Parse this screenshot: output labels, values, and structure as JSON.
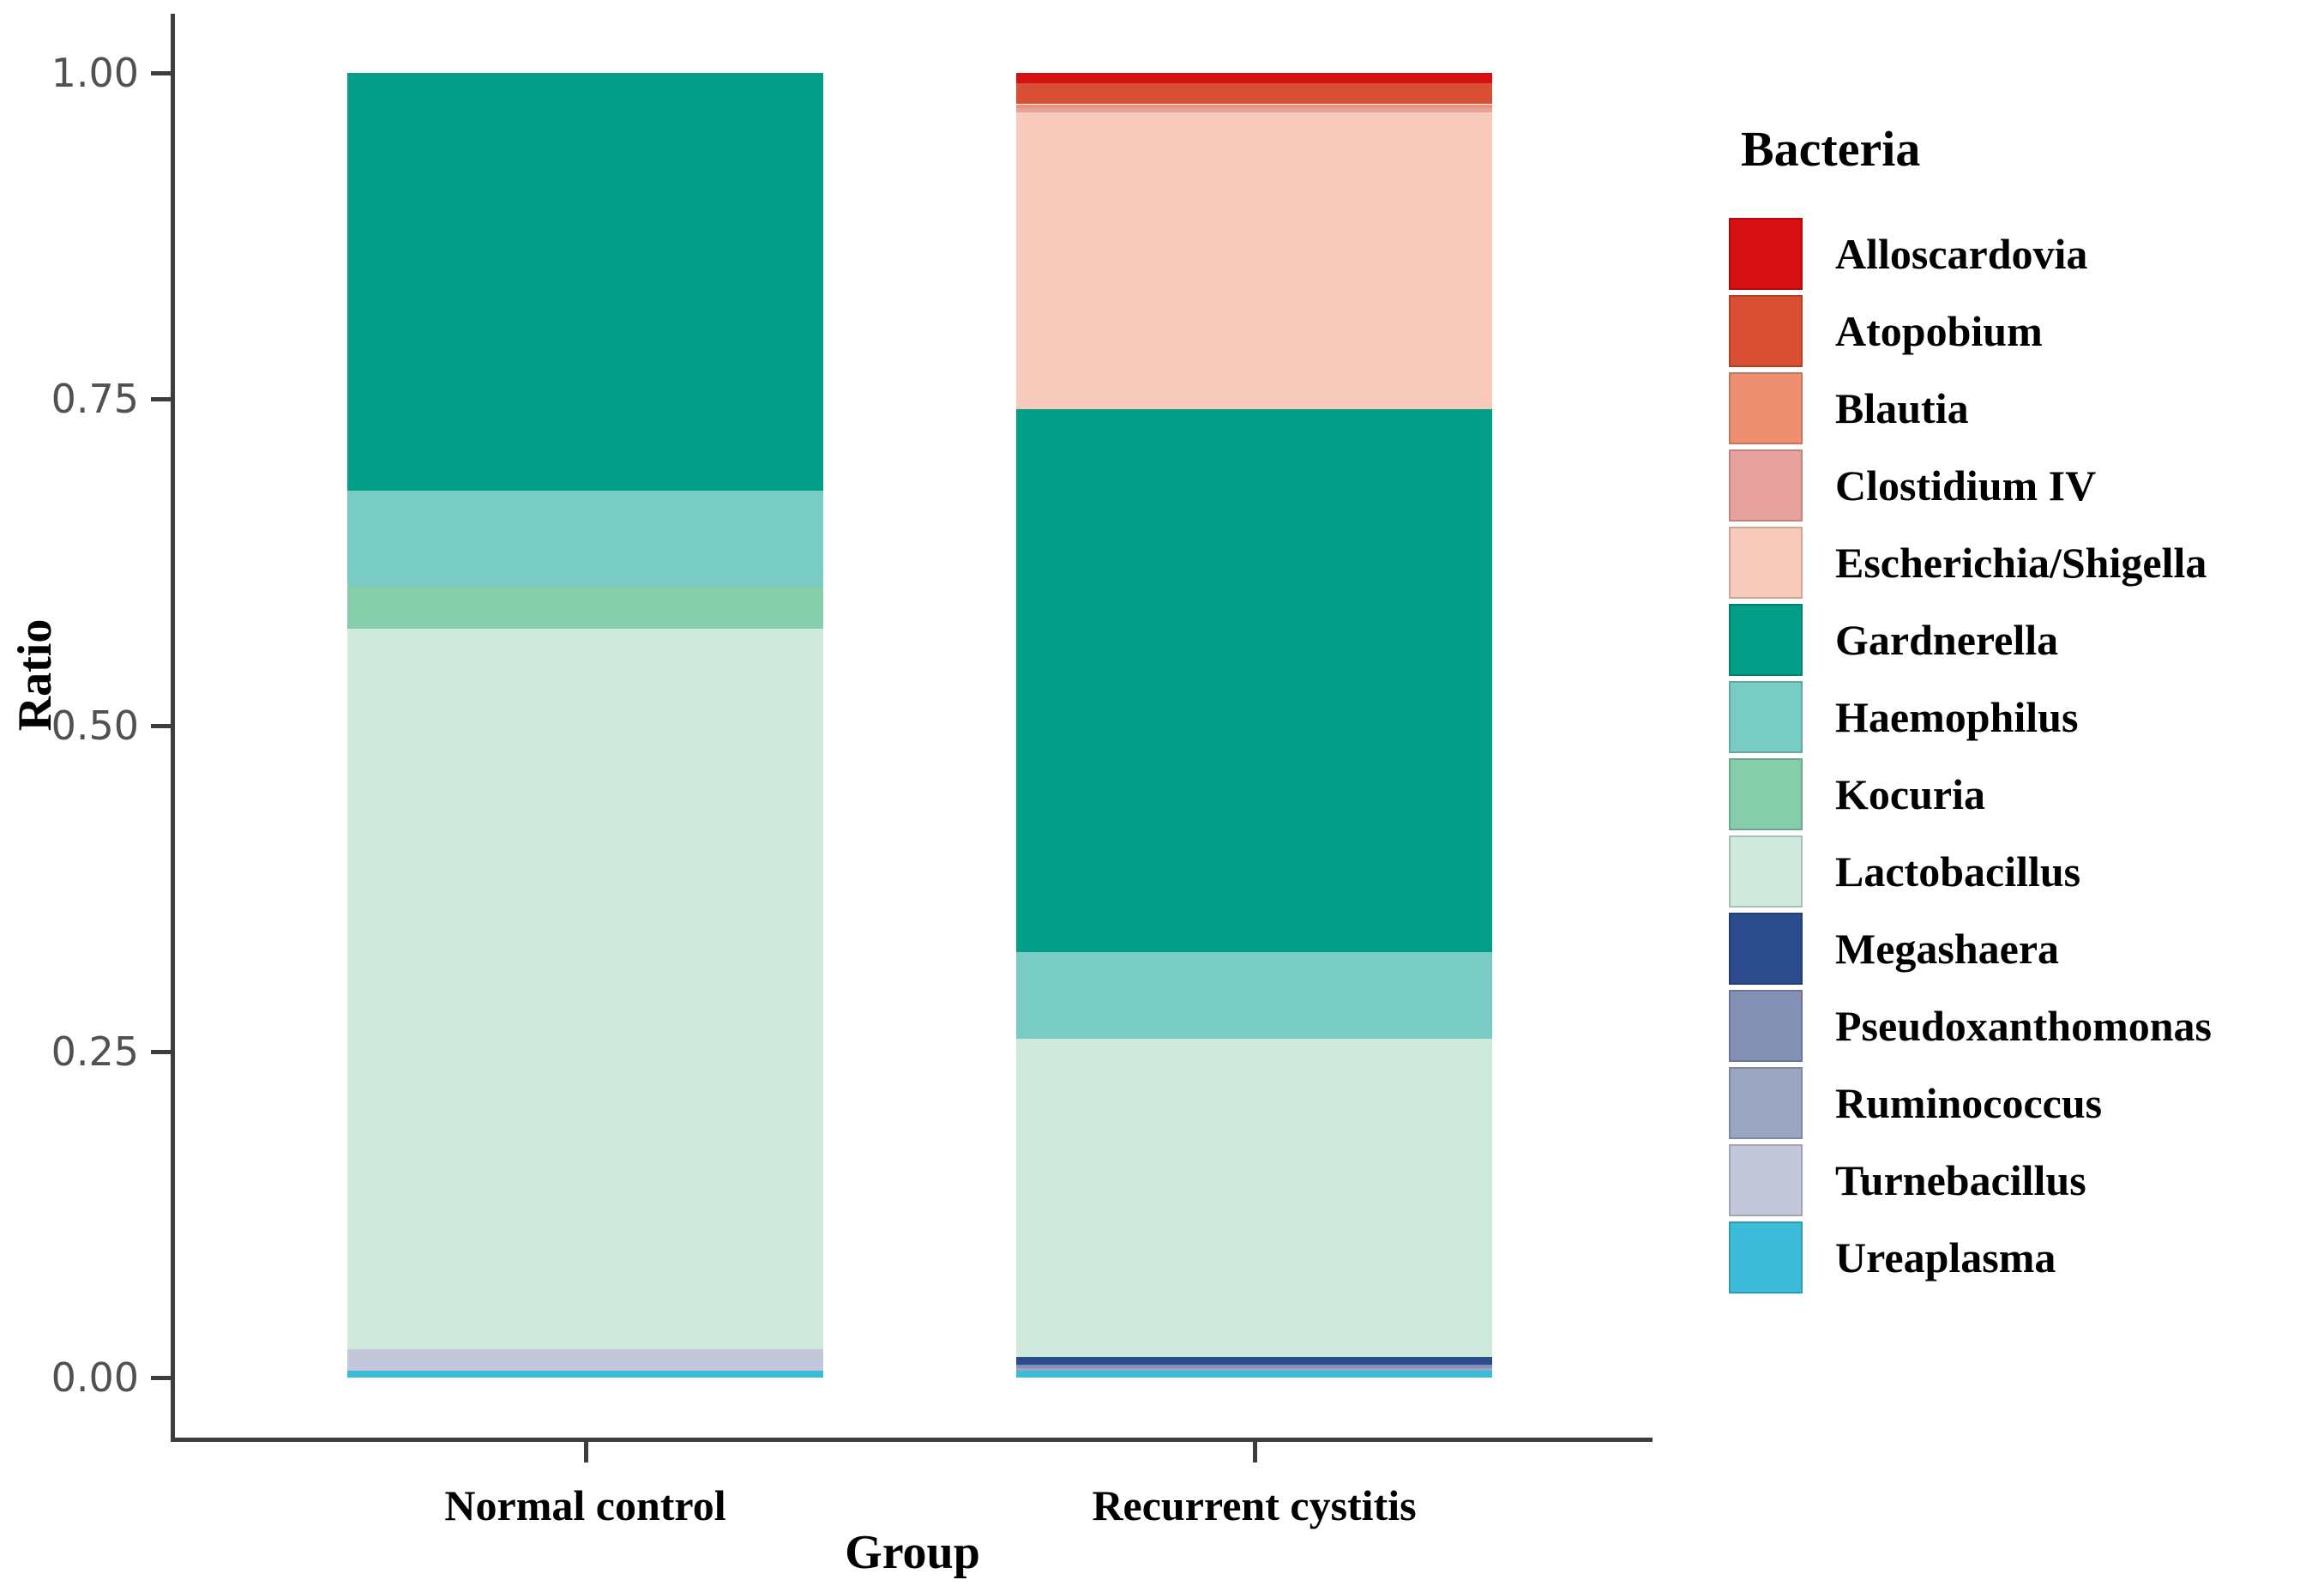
{
  "chart_data": {
    "type": "bar",
    "stacked": true,
    "legend_title": "Bacteria",
    "xlabel": "Group",
    "ylabel": "Ratio",
    "ylim": [
      0,
      1
    ],
    "grid": false,
    "legend_position": "right",
    "categories": [
      "Normal control",
      "Recurrent cystitis"
    ],
    "yticks": [
      {
        "label": "1.00",
        "value": 1.0
      },
      {
        "label": "0.75",
        "value": 0.75
      },
      {
        "label": "0.50",
        "value": 0.5
      },
      {
        "label": "0.25",
        "value": 0.25
      },
      {
        "label": "0.00",
        "value": 0.0
      }
    ],
    "bacteria": [
      {
        "name": "Alloscardovia",
        "color": "#d50f12"
      },
      {
        "name": "Atopobium",
        "color": "#d94f33"
      },
      {
        "name": "Blautia",
        "color": "#ee8f72"
      },
      {
        "name": "Clostidium IV",
        "color": "#e8a29e"
      },
      {
        "name": "Escherichia/Shigella",
        "color": "#f8cabc"
      },
      {
        "name": "Gardnerella",
        "color": "#029e87"
      },
      {
        "name": "Haemophilus",
        "color": "#79ccc3"
      },
      {
        "name": "Kocuria",
        "color": "#85cdab"
      },
      {
        "name": "Lactobacillus",
        "color": "#cfe9dd"
      },
      {
        "name": "Megashaera",
        "color": "#2d4c8e"
      },
      {
        "name": "Pseudoxanthomonas",
        "color": "#8490b4"
      },
      {
        "name": "Ruminococcus",
        "color": "#9aa6c2"
      },
      {
        "name": "Turnebacillus",
        "color": "#c3c7da"
      },
      {
        "name": "Ureaplasma",
        "color": "#3cbcd8"
      }
    ],
    "series": [
      {
        "name": "Alloscardovia",
        "values": [
          0,
          0.008
        ]
      },
      {
        "name": "Atopobium",
        "values": [
          0,
          0.016
        ]
      },
      {
        "name": "Blautia",
        "values": [
          0,
          0.003
        ]
      },
      {
        "name": "Clostidium IV",
        "values": [
          0,
          0.003
        ]
      },
      {
        "name": "Escherichia/Shigella",
        "values": [
          0,
          0.228
        ]
      },
      {
        "name": "Gardnerella",
        "values": [
          0.32,
          0.416
        ]
      },
      {
        "name": "Haemophilus",
        "values": [
          0.073,
          0.066
        ]
      },
      {
        "name": "Kocuria",
        "values": [
          0.033,
          0
        ]
      },
      {
        "name": "Lactobacillus",
        "values": [
          0.552,
          0.244
        ]
      },
      {
        "name": "Megashaera",
        "values": [
          0,
          0.006
        ]
      },
      {
        "name": "Pseudoxanthomonas",
        "values": [
          0,
          0.003
        ]
      },
      {
        "name": "Ruminococcus",
        "values": [
          0,
          0.002
        ]
      },
      {
        "name": "Turnebacillus",
        "values": [
          0.017,
          0
        ]
      },
      {
        "name": "Ureaplasma",
        "values": [
          0.005,
          0.005
        ]
      }
    ]
  }
}
